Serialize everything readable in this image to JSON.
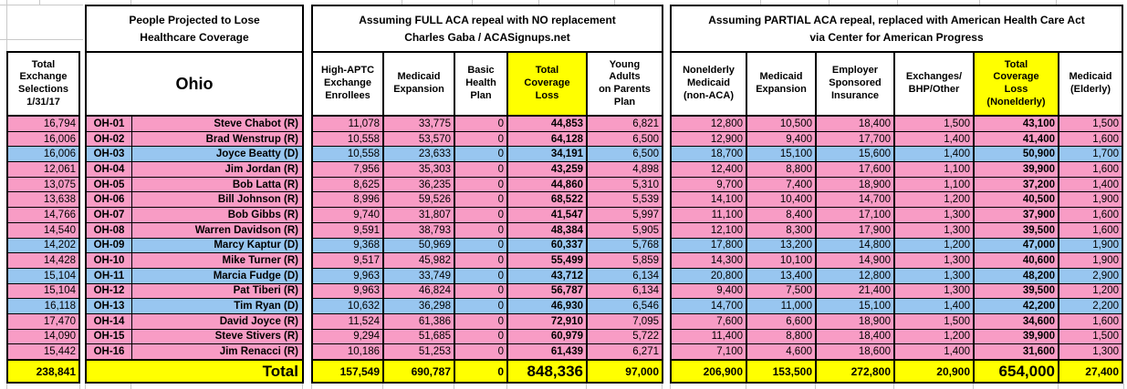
{
  "colors": {
    "pink": "#F89CC5",
    "blue": "#98C6F0",
    "yellow": "#FFFF00",
    "grid": "#C9C9C9"
  },
  "left_column": {
    "header": "Total\nExchange\nSelections\n1/31/17",
    "values": [
      "16,794",
      "16,006",
      "16,006",
      "12,061",
      "13,075",
      "13,638",
      "14,766",
      "14,540",
      "14,202",
      "14,428",
      "15,104",
      "15,104",
      "16,118",
      "17,470",
      "14,090",
      "15,442"
    ],
    "total": "238,841"
  },
  "ohio": {
    "title": "People Projected to Lose\nHealthcare Coverage",
    "state": "Ohio",
    "total_label": "Total",
    "districts": [
      {
        "code": "OH-01",
        "rep": "Steve Chabot (R)",
        "party": "R"
      },
      {
        "code": "OH-02",
        "rep": "Brad Wenstrup (R)",
        "party": "R"
      },
      {
        "code": "OH-03",
        "rep": "Joyce Beatty (D)",
        "party": "D"
      },
      {
        "code": "OH-04",
        "rep": "Jim Jordan (R)",
        "party": "R"
      },
      {
        "code": "OH-05",
        "rep": "Bob Latta (R)",
        "party": "R"
      },
      {
        "code": "OH-06",
        "rep": "Bill Johnson (R)",
        "party": "R"
      },
      {
        "code": "OH-07",
        "rep": "Bob Gibbs (R)",
        "party": "R"
      },
      {
        "code": "OH-08",
        "rep": "Warren Davidson (R)",
        "party": "R"
      },
      {
        "code": "OH-09",
        "rep": "Marcy Kaptur (D)",
        "party": "D"
      },
      {
        "code": "OH-10",
        "rep": "Mike Turner (R)",
        "party": "R"
      },
      {
        "code": "OH-11",
        "rep": "Marcia Fudge (D)",
        "party": "D"
      },
      {
        "code": "OH-12",
        "rep": "Pat Tiberi (R)",
        "party": "R"
      },
      {
        "code": "OH-13",
        "rep": "Tim Ryan (D)",
        "party": "D"
      },
      {
        "code": "OH-14",
        "rep": "David Joyce (R)",
        "party": "R"
      },
      {
        "code": "OH-15",
        "rep": "Steve Stivers (R)",
        "party": "R"
      },
      {
        "code": "OH-16",
        "rep": "Jim Renacci (R)",
        "party": "R"
      }
    ]
  },
  "full_repeal": {
    "title": "Assuming FULL ACA repeal with NO replacement\nCharles Gaba / ACASignups.net",
    "columns": [
      {
        "label": "High-APTC\nExchange\nEnrollees",
        "highlight": false
      },
      {
        "label": "Medicaid\nExpansion",
        "highlight": false
      },
      {
        "label": "Basic\nHealth\nPlan",
        "highlight": false
      },
      {
        "label": "Total\nCoverage\nLoss",
        "highlight": true
      },
      {
        "label": "Young\nAdults\non Parents\nPlan",
        "highlight": false
      }
    ],
    "rows": [
      [
        "11,078",
        "33,775",
        "0",
        "44,853",
        "6,821"
      ],
      [
        "10,558",
        "53,570",
        "0",
        "64,128",
        "6,500"
      ],
      [
        "10,558",
        "23,633",
        "0",
        "34,191",
        "6,500"
      ],
      [
        "7,956",
        "35,303",
        "0",
        "43,259",
        "4,898"
      ],
      [
        "8,625",
        "36,235",
        "0",
        "44,860",
        "5,310"
      ],
      [
        "8,996",
        "59,526",
        "0",
        "68,522",
        "5,539"
      ],
      [
        "9,740",
        "31,807",
        "0",
        "41,547",
        "5,997"
      ],
      [
        "9,591",
        "38,793",
        "0",
        "48,384",
        "5,905"
      ],
      [
        "9,368",
        "50,969",
        "0",
        "60,337",
        "5,768"
      ],
      [
        "9,517",
        "45,982",
        "0",
        "55,499",
        "5,859"
      ],
      [
        "9,963",
        "33,749",
        "0",
        "43,712",
        "6,134"
      ],
      [
        "9,963",
        "46,824",
        "0",
        "56,787",
        "6,134"
      ],
      [
        "10,632",
        "36,298",
        "0",
        "46,930",
        "6,546"
      ],
      [
        "11,524",
        "61,386",
        "0",
        "72,910",
        "7,095"
      ],
      [
        "9,294",
        "51,685",
        "0",
        "60,979",
        "5,722"
      ],
      [
        "10,186",
        "51,253",
        "0",
        "61,439",
        "6,271"
      ]
    ],
    "totals": [
      "157,549",
      "690,787",
      "0",
      "848,336",
      "97,000"
    ]
  },
  "partial_repeal": {
    "title": "Assuming PARTIAL ACA repeal, replaced with American Health Care Act\nvia Center for American Progress",
    "columns": [
      {
        "label": "Nonelderly\nMedicaid\n(non-ACA)",
        "highlight": false
      },
      {
        "label": "Medicaid\nExpansion",
        "highlight": false
      },
      {
        "label": "Employer\nSponsored\nInsurance",
        "highlight": false
      },
      {
        "label": "Exchanges/\nBHP/Other",
        "highlight": false
      },
      {
        "label": "Total\nCoverage\nLoss\n(Nonelderly)",
        "highlight": true
      },
      {
        "label": "Medicaid\n(Elderly)",
        "highlight": false
      }
    ],
    "rows": [
      [
        "12,800",
        "10,500",
        "18,400",
        "1,500",
        "43,100",
        "1,500"
      ],
      [
        "12,900",
        "9,400",
        "17,700",
        "1,400",
        "41,400",
        "1,600"
      ],
      [
        "18,700",
        "15,100",
        "15,600",
        "1,400",
        "50,900",
        "1,700"
      ],
      [
        "12,400",
        "8,800",
        "17,600",
        "1,100",
        "39,900",
        "1,600"
      ],
      [
        "9,700",
        "7,400",
        "18,900",
        "1,100",
        "37,200",
        "1,400"
      ],
      [
        "14,100",
        "10,400",
        "14,700",
        "1,200",
        "40,500",
        "1,900"
      ],
      [
        "11,100",
        "8,400",
        "17,100",
        "1,300",
        "37,900",
        "1,600"
      ],
      [
        "12,100",
        "8,300",
        "17,900",
        "1,300",
        "39,500",
        "1,600"
      ],
      [
        "17,800",
        "13,200",
        "14,800",
        "1,200",
        "47,000",
        "1,900"
      ],
      [
        "14,300",
        "10,100",
        "14,900",
        "1,300",
        "40,600",
        "1,900"
      ],
      [
        "20,800",
        "13,400",
        "12,800",
        "1,300",
        "48,200",
        "2,900"
      ],
      [
        "9,400",
        "7,500",
        "21,400",
        "1,300",
        "39,500",
        "1,200"
      ],
      [
        "14,700",
        "11,000",
        "15,100",
        "1,400",
        "42,200",
        "2,200"
      ],
      [
        "7,600",
        "6,600",
        "18,900",
        "1,500",
        "34,600",
        "1,600"
      ],
      [
        "11,400",
        "8,800",
        "18,400",
        "1,200",
        "39,900",
        "1,500"
      ],
      [
        "7,100",
        "4,600",
        "18,600",
        "1,400",
        "31,600",
        "1,300"
      ]
    ],
    "totals": [
      "206,900",
      "153,500",
      "272,800",
      "20,900",
      "654,000",
      "27,400"
    ]
  }
}
